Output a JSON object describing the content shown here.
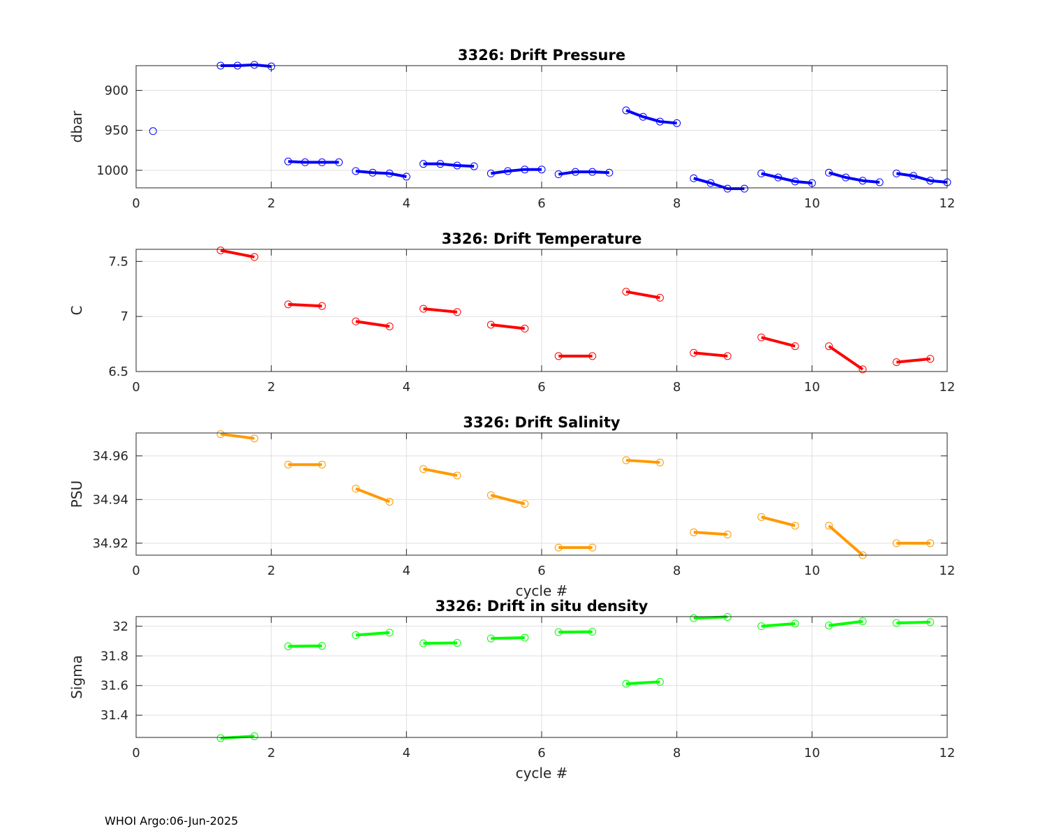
{
  "footer": "WHOI Argo:06-Jun-2025",
  "chart_data": [
    {
      "type": "line",
      "title": "3326: Drift Pressure",
      "xlabel": "",
      "ylabel": "dbar",
      "y_reversed": true,
      "xlim": [
        0,
        12
      ],
      "ylim": [
        869,
        1022
      ],
      "xticks": [
        0,
        2,
        4,
        6,
        8,
        10,
        12
      ],
      "yticks": [
        900,
        950,
        1000
      ],
      "color": "#0000ff",
      "grid": true,
      "segments": [
        {
          "x": [
            0.25
          ],
          "y": [
            951
          ]
        },
        {
          "x": [
            1.25,
            1.5,
            1.75,
            2.0
          ],
          "y": [
            869,
            869,
            868,
            870
          ]
        },
        {
          "x": [
            2.25,
            2.5,
            2.75,
            3.0
          ],
          "y": [
            989,
            990,
            990,
            990
          ]
        },
        {
          "x": [
            3.25,
            3.5,
            3.75,
            4.0
          ],
          "y": [
            1001,
            1003,
            1004,
            1008
          ]
        },
        {
          "x": [
            4.25,
            4.5,
            4.75,
            5.0
          ],
          "y": [
            992,
            992,
            994,
            995
          ]
        },
        {
          "x": [
            5.25,
            5.5,
            5.75,
            6.0
          ],
          "y": [
            1004,
            1001,
            999,
            999
          ]
        },
        {
          "x": [
            6.25,
            6.5,
            6.75,
            7.0
          ],
          "y": [
            1005,
            1002,
            1002,
            1003
          ]
        },
        {
          "x": [
            7.25,
            7.5,
            7.75,
            8.0
          ],
          "y": [
            925,
            933,
            939,
            941
          ]
        },
        {
          "x": [
            8.25,
            8.5,
            8.75,
            9.0
          ],
          "y": [
            1010,
            1016,
            1023,
            1023
          ]
        },
        {
          "x": [
            9.25,
            9.5,
            9.75,
            10.0
          ],
          "y": [
            1004,
            1009,
            1014,
            1016
          ]
        },
        {
          "x": [
            10.25,
            10.5,
            10.75,
            11.0
          ],
          "y": [
            1003,
            1009,
            1013,
            1015
          ]
        },
        {
          "x": [
            11.25,
            11.5,
            11.75,
            12.0
          ],
          "y": [
            1004,
            1007,
            1013,
            1015
          ]
        }
      ]
    },
    {
      "type": "line",
      "title": "3326: Drift Temperature",
      "xlabel": "",
      "ylabel": "C",
      "y_reversed": false,
      "xlim": [
        0,
        12
      ],
      "ylim": [
        6.5,
        7.61
      ],
      "xticks": [
        0,
        2,
        4,
        6,
        8,
        10,
        12
      ],
      "yticks": [
        6.5,
        7,
        7.5
      ],
      "color": "#ff0000",
      "grid": true,
      "segments": [
        {
          "x": [
            1.25,
            1.75
          ],
          "y": [
            7.6,
            7.54
          ]
        },
        {
          "x": [
            2.25,
            2.75
          ],
          "y": [
            7.11,
            7.095
          ]
        },
        {
          "x": [
            3.25,
            3.75
          ],
          "y": [
            6.955,
            6.91
          ]
        },
        {
          "x": [
            4.25,
            4.75
          ],
          "y": [
            7.07,
            7.04
          ]
        },
        {
          "x": [
            5.25,
            5.75
          ],
          "y": [
            6.925,
            6.89
          ]
        },
        {
          "x": [
            6.25,
            6.75
          ],
          "y": [
            6.64,
            6.64
          ]
        },
        {
          "x": [
            7.25,
            7.75
          ],
          "y": [
            7.225,
            7.17
          ]
        },
        {
          "x": [
            8.25,
            8.75
          ],
          "y": [
            6.67,
            6.64
          ]
        },
        {
          "x": [
            9.25,
            9.75
          ],
          "y": [
            6.81,
            6.73
          ]
        },
        {
          "x": [
            10.25,
            10.75
          ],
          "y": [
            6.73,
            6.52
          ]
        },
        {
          "x": [
            11.25,
            11.75
          ],
          "y": [
            6.585,
            6.615
          ]
        }
      ]
    },
    {
      "type": "line",
      "title": "3326: Drift Salinity",
      "xlabel": "cycle #",
      "ylabel": "PSU",
      "y_reversed": false,
      "xlim": [
        0,
        12
      ],
      "ylim": [
        34.9145,
        34.9705
      ],
      "xticks": [
        0,
        2,
        4,
        6,
        8,
        10,
        12
      ],
      "yticks": [
        34.92,
        34.94,
        34.96
      ],
      "color": "#ff9900",
      "grid": true,
      "segments": [
        {
          "x": [
            1.25,
            1.75
          ],
          "y": [
            34.97,
            34.968
          ]
        },
        {
          "x": [
            2.25,
            2.75
          ],
          "y": [
            34.956,
            34.956
          ]
        },
        {
          "x": [
            3.25,
            3.75
          ],
          "y": [
            34.945,
            34.939
          ]
        },
        {
          "x": [
            4.25,
            4.75
          ],
          "y": [
            34.954,
            34.951
          ]
        },
        {
          "x": [
            5.25,
            5.75
          ],
          "y": [
            34.942,
            34.938
          ]
        },
        {
          "x": [
            6.25,
            6.75
          ],
          "y": [
            34.918,
            34.918
          ]
        },
        {
          "x": [
            7.25,
            7.75
          ],
          "y": [
            34.958,
            34.957
          ]
        },
        {
          "x": [
            8.25,
            8.75
          ],
          "y": [
            34.925,
            34.924
          ]
        },
        {
          "x": [
            9.25,
            9.75
          ],
          "y": [
            34.932,
            34.928
          ]
        },
        {
          "x": [
            10.25,
            10.75
          ],
          "y": [
            34.928,
            34.9145
          ]
        },
        {
          "x": [
            11.25,
            11.75
          ],
          "y": [
            34.92,
            34.92
          ]
        }
      ]
    },
    {
      "type": "line",
      "title": "3326: Drift in situ density",
      "xlabel": "cycle #",
      "ylabel": "Sigma",
      "y_reversed": false,
      "xlim": [
        0,
        12
      ],
      "ylim": [
        31.25,
        32.065
      ],
      "xticks": [
        0,
        2,
        4,
        6,
        8,
        10,
        12
      ],
      "yticks": [
        31.4,
        31.6,
        31.8,
        32
      ],
      "color": "#00ff00",
      "grid": true,
      "segments": [
        {
          "x": [
            1.25,
            1.75
          ],
          "y": [
            31.245,
            31.258
          ]
        },
        {
          "x": [
            2.25,
            2.75
          ],
          "y": [
            31.865,
            31.868
          ]
        },
        {
          "x": [
            3.25,
            3.75
          ],
          "y": [
            31.94,
            31.957
          ]
        },
        {
          "x": [
            4.25,
            4.75
          ],
          "y": [
            31.885,
            31.888
          ]
        },
        {
          "x": [
            5.25,
            5.75
          ],
          "y": [
            31.918,
            31.923
          ]
        },
        {
          "x": [
            6.25,
            6.75
          ],
          "y": [
            31.96,
            31.963
          ]
        },
        {
          "x": [
            7.25,
            7.75
          ],
          "y": [
            31.612,
            31.625
          ]
        },
        {
          "x": [
            8.25,
            8.75
          ],
          "y": [
            32.055,
            32.063
          ]
        },
        {
          "x": [
            9.25,
            9.75
          ],
          "y": [
            32.0,
            32.018
          ]
        },
        {
          "x": [
            10.25,
            10.75
          ],
          "y": [
            32.005,
            32.033
          ]
        },
        {
          "x": [
            11.25,
            11.75
          ],
          "y": [
            32.022,
            32.028
          ]
        }
      ]
    }
  ]
}
